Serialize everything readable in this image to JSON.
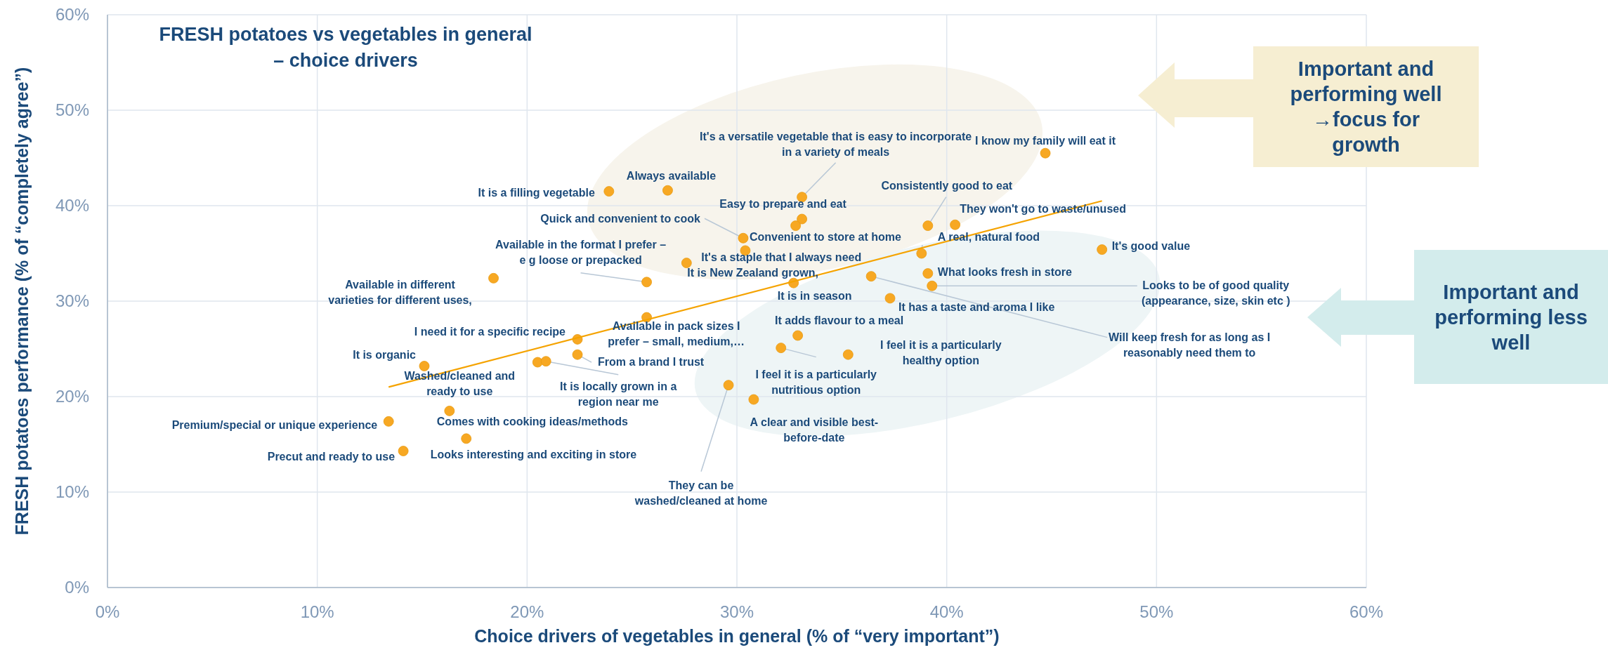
{
  "chart_data": {
    "type": "scatter",
    "title": "FRESH potatoes vs vegetables in general – choice drivers",
    "xlabel": "Choice drivers of vegetables in general (% of “very important”)",
    "ylabel": "FRESH potatoes performance (% of “completely agree”)",
    "xlim": [
      0,
      60
    ],
    "ylim": [
      0,
      60
    ],
    "xticks": [
      {
        "value": 0,
        "label": "0%"
      },
      {
        "value": 10,
        "label": "10%"
      },
      {
        "value": 20,
        "label": "20%"
      },
      {
        "value": 30,
        "label": "30%"
      },
      {
        "value": 40,
        "label": "40%"
      },
      {
        "value": 50,
        "label": "50%"
      },
      {
        "value": 60,
        "label": "60%"
      }
    ],
    "yticks": [
      {
        "value": 0,
        "label": "0%"
      },
      {
        "value": 10,
        "label": "10%"
      },
      {
        "value": 20,
        "label": "20%"
      },
      {
        "value": 30,
        "label": "30%"
      },
      {
        "value": 40,
        "label": "40%"
      },
      {
        "value": 50,
        "label": "50%"
      },
      {
        "value": 60,
        "label": "60%"
      }
    ],
    "grid": true,
    "series": [
      {
        "type": "scatter",
        "color": "#f7a823",
        "marker": "circle",
        "x": [
          23.9,
          26.7,
          33.1,
          44.7,
          39.1,
          40.4,
          33.1,
          32.8,
          30.3,
          30.4,
          38.8,
          47.4,
          25.7,
          27.6,
          32.7,
          39.1,
          39.3,
          18.4,
          37.3,
          36.4,
          25.7,
          22.4,
          32.9,
          35.3,
          15.1,
          22.4,
          20.5,
          20.9,
          32.1,
          13.4,
          16.3,
          30.8,
          14.1,
          17.1,
          29.6
        ],
        "values": [
          41.5,
          41.6,
          40.9,
          45.5,
          37.9,
          38.0,
          38.6,
          37.9,
          36.6,
          35.3,
          35.0,
          35.4,
          32.0,
          34.0,
          31.9,
          32.9,
          31.6,
          32.4,
          30.3,
          32.6,
          28.3,
          26.0,
          26.4,
          24.4,
          23.2,
          24.4,
          23.6,
          23.7,
          25.1,
          17.4,
          18.5,
          19.7,
          14.3,
          15.6,
          21.2
        ]
      },
      {
        "type": "line",
        "color": "#f5a300",
        "x": [
          13.4,
          47.4
        ],
        "values": [
          21.0,
          40.5
        ]
      }
    ],
    "annotations": [
      {
        "text": "It is a filling vegetable",
        "x": 23.9,
        "y": 41.5
      },
      {
        "text": "Always available",
        "x": 26.7,
        "y": 41.6
      },
      {
        "text": "It's a versatile vegetable that is easy to incorporate in a variety of meals",
        "x": 33.1,
        "y": 40.9
      },
      {
        "text": "I know my family will eat it",
        "x": 44.7,
        "y": 45.5
      },
      {
        "text": "Consistently good to eat",
        "x": 39.1,
        "y": 37.9
      },
      {
        "text": "They won't go to waste/unused",
        "x": 40.4,
        "y": 38.0
      },
      {
        "text": "Easy to prepare and eat",
        "x": 33.1,
        "y": 38.6
      },
      {
        "text": "Quick and convenient to cook",
        "x": 30.3,
        "y": 36.6
      },
      {
        "text": "Convenient to store at home",
        "x": 30.4,
        "y": 35.3
      },
      {
        "text": "A real, natural food",
        "x": 38.8,
        "y": 35.0
      },
      {
        "text": "It's good value",
        "x": 47.4,
        "y": 35.4
      },
      {
        "text": "Available in the format I prefer – e g  loose or prepacked",
        "x": 25.7,
        "y": 32.0
      },
      {
        "text": "It's a staple that I always need",
        "x": 27.6,
        "y": 34.0
      },
      {
        "text": "It is New Zealand grown,",
        "x": 32.7,
        "y": 31.9
      },
      {
        "text": "It is in season",
        "x": 32.7,
        "y": 31.9
      },
      {
        "text": "What looks fresh in store",
        "x": 39.1,
        "y": 32.9
      },
      {
        "text": "Looks to be of good quality (appearance, size, skin etc  )",
        "x": 39.3,
        "y": 31.6
      },
      {
        "text": "Available in different varieties for different uses,",
        "x": 18.4,
        "y": 32.4
      },
      {
        "text": "It has a taste and aroma I like",
        "x": 37.3,
        "y": 30.3
      },
      {
        "text": "Will keep fresh for as long as I reasonably need them to",
        "x": 36.4,
        "y": 32.6
      },
      {
        "text": "Available in pack sizes I prefer – small, medium,…",
        "x": 25.7,
        "y": 28.3
      },
      {
        "text": "I need it for a specific recipe",
        "x": 22.4,
        "y": 26.0
      },
      {
        "text": "It adds flavour to a meal",
        "x": 32.9,
        "y": 26.4
      },
      {
        "text": "I feel it is a particularly healthy option",
        "x": 35.3,
        "y": 24.4
      },
      {
        "text": "It is organic",
        "x": 15.1,
        "y": 23.2
      },
      {
        "text": "From a brand I trust",
        "x": 22.4,
        "y": 24.4
      },
      {
        "text": "Washed/cleaned and ready to use",
        "x": 20.5,
        "y": 23.6
      },
      {
        "text": "It is locally grown in a region near me",
        "x": 20.9,
        "y": 23.7
      },
      {
        "text": "I feel it is a particularly nutritious option",
        "x": 32.1,
        "y": 25.1
      },
      {
        "text": "Premium/special or unique experience",
        "x": 13.4,
        "y": 17.4
      },
      {
        "text": "Comes with cooking ideas/methods",
        "x": 16.3,
        "y": 18.5
      },
      {
        "text": "A clear and visible best-before-date",
        "x": 30.8,
        "y": 19.7
      },
      {
        "text": "Precut and ready to use",
        "x": 14.1,
        "y": 14.3
      },
      {
        "text": "Looks interesting and exciting in store",
        "x": 17.1,
        "y": 15.6
      },
      {
        "text": "They can be washed/cleaned at home",
        "x": 29.6,
        "y": 21.2
      },
      "Important and performing well →focus for growth",
      "Important and performing less well"
    ]
  }
}
